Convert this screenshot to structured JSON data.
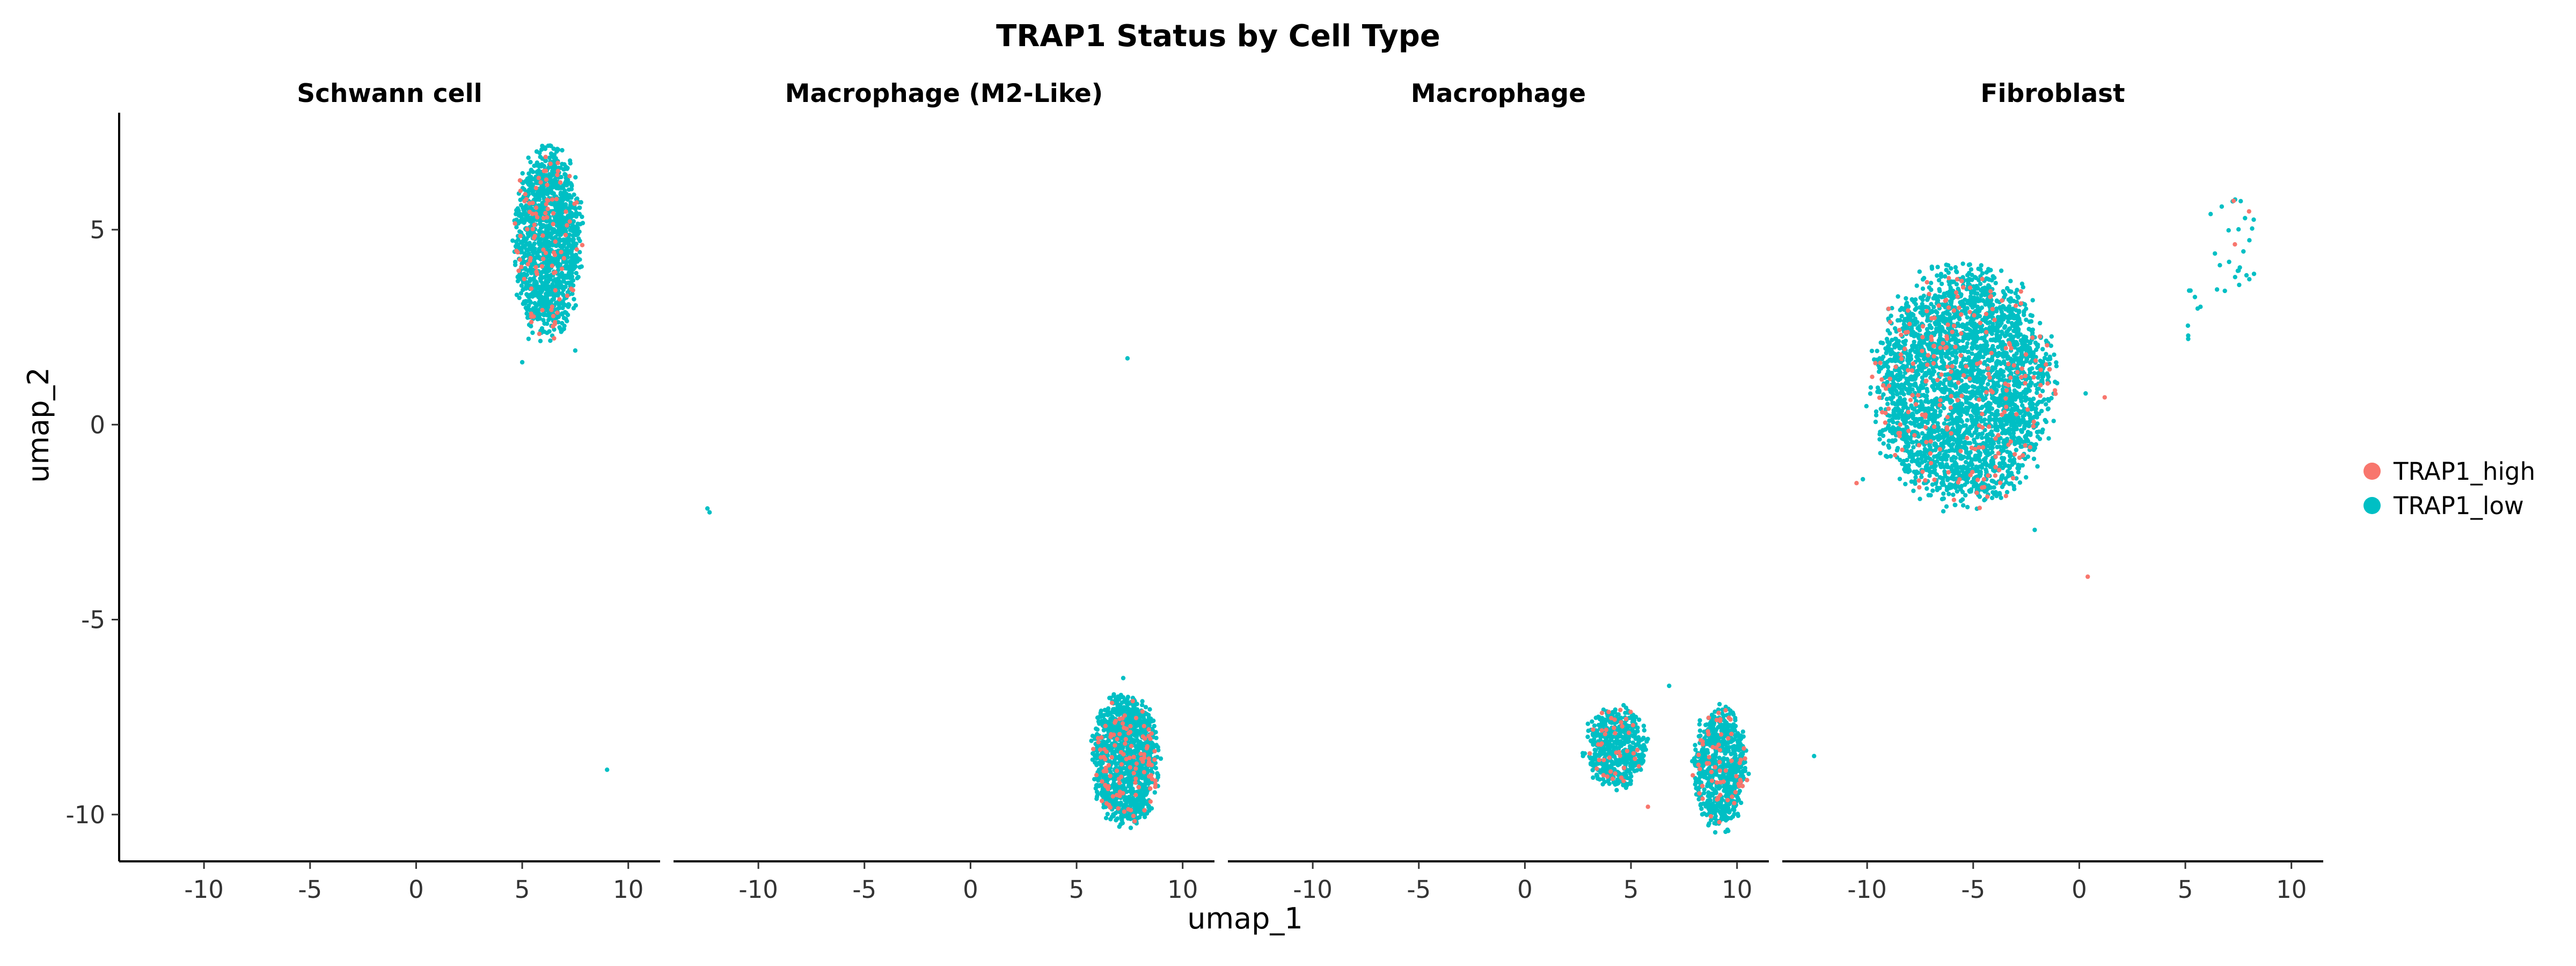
{
  "chart_data": {
    "type": "scatter",
    "title": "TRAP1 Status by Cell Type",
    "xlabel": "umap_1",
    "ylabel": "umap_2",
    "xlim": [
      -14,
      11.5
    ],
    "ylim": [
      -11.2,
      8
    ],
    "xticks": [
      -10,
      -5,
      0,
      5,
      10
    ],
    "yticks": [
      5,
      0,
      -5,
      -10
    ],
    "grid": false,
    "legend_position": "right",
    "series": [
      {
        "name": "TRAP1_high",
        "color": "#F8766D"
      },
      {
        "name": "TRAP1_low",
        "color": "#00BFC4"
      }
    ],
    "panels": [
      {
        "label": "Schwann cell",
        "clusters": [
          {
            "cx": 6.2,
            "cy": 4.7,
            "rx": 1.5,
            "ry": 2.3,
            "n": 1400,
            "high_frac": 0.06
          }
        ],
        "points": [
          {
            "x": 9.0,
            "y": -8.85,
            "status": "TRAP1_low"
          },
          {
            "x": 7.5,
            "y": 1.9,
            "status": "TRAP1_low"
          },
          {
            "x": 5.0,
            "y": 1.6,
            "status": "TRAP1_low"
          },
          {
            "x": 5.3,
            "y": 2.2,
            "status": "TRAP1_low"
          }
        ]
      },
      {
        "label": "Macrophage (M2-Like)",
        "clusters": [
          {
            "cx": 7.3,
            "cy": -8.6,
            "rx": 1.5,
            "ry": 1.6,
            "n": 1300,
            "high_frac": 0.08
          }
        ],
        "points": [
          {
            "x": 7.4,
            "y": 1.7,
            "status": "TRAP1_low"
          },
          {
            "x": -12.4,
            "y": -2.15,
            "status": "TRAP1_low"
          },
          {
            "x": -12.3,
            "y": -2.25,
            "status": "TRAP1_low"
          },
          {
            "x": 7.2,
            "y": -6.5,
            "status": "TRAP1_low"
          }
        ]
      },
      {
        "label": "Macrophage",
        "clusters": [
          {
            "cx": 4.3,
            "cy": -8.3,
            "rx": 1.4,
            "ry": 1.0,
            "n": 550,
            "high_frac": 0.06
          },
          {
            "cx": 9.2,
            "cy": -8.8,
            "rx": 1.2,
            "ry": 1.5,
            "n": 750,
            "high_frac": 0.08
          }
        ],
        "points": [
          {
            "x": 6.8,
            "y": -6.7,
            "status": "TRAP1_low"
          },
          {
            "x": 5.8,
            "y": -9.8,
            "status": "TRAP1_high"
          }
        ]
      },
      {
        "label": "Fibroblast",
        "clusters": [
          {
            "cx": -5.5,
            "cy": 1.0,
            "rx": 4.0,
            "ry": 2.9,
            "n": 3200,
            "high_frac": 0.07
          },
          {
            "cx": 7.3,
            "cy": 4.6,
            "rx": 1.2,
            "ry": 1.6,
            "n": 28,
            "high_frac": 0.05
          },
          {
            "cx": 5.3,
            "cy": 2.8,
            "rx": 0.5,
            "ry": 0.8,
            "n": 8,
            "high_frac": 0.0
          }
        ],
        "points": [
          {
            "x": -10.2,
            "y": -1.4,
            "status": "TRAP1_low"
          },
          {
            "x": -10.5,
            "y": -1.5,
            "status": "TRAP1_high"
          },
          {
            "x": 0.4,
            "y": -3.9,
            "status": "TRAP1_high"
          },
          {
            "x": 1.2,
            "y": 0.7,
            "status": "TRAP1_high"
          },
          {
            "x": -12.5,
            "y": -8.5,
            "status": "TRAP1_low"
          },
          {
            "x": 0.3,
            "y": 0.8,
            "status": "TRAP1_low"
          },
          {
            "x": -2.1,
            "y": -2.7,
            "status": "TRAP1_low"
          }
        ]
      }
    ]
  }
}
